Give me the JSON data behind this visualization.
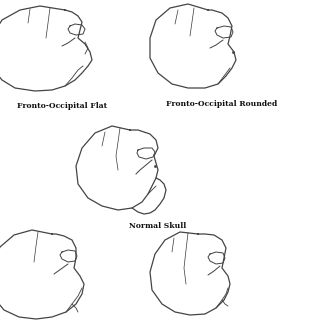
{
  "background_color": "#ffffff",
  "line_color": "#444444",
  "line_width": 0.9,
  "labels": {
    "top_left": "Fronto-Occipital Flat",
    "top_right": "Fronto-Occipital Rounded",
    "center": "Normal Skull",
    "bottom_left": "",
    "bottom_right": ""
  },
  "label_fontsize": 5.5,
  "label_fontweight": "bold"
}
